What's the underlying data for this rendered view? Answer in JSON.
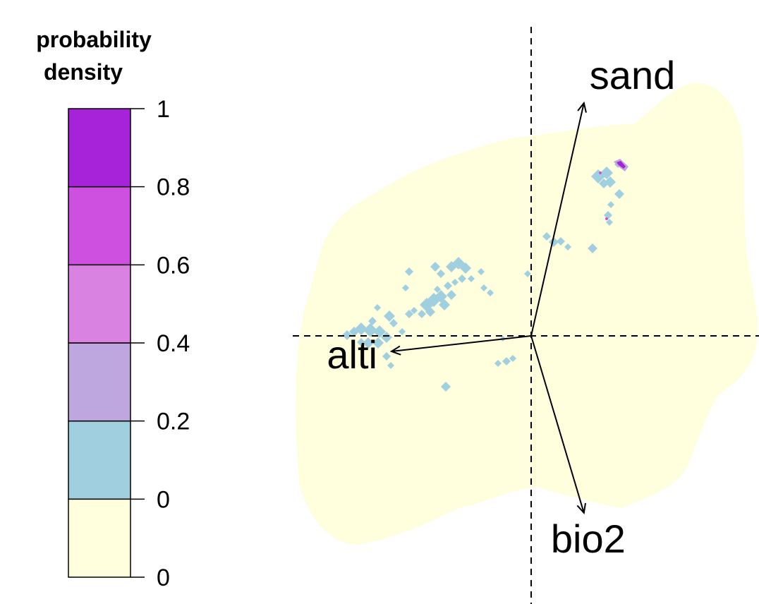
{
  "chart_data": {
    "type": "heatmap",
    "legend": {
      "title_lines": [
        "probability",
        "density"
      ],
      "bins": [
        {
          "from": 0,
          "to": 0,
          "color": "#FFFFDD"
        },
        {
          "from": 0,
          "to": 0.2,
          "color": "#A0CFDF"
        },
        {
          "from": 0.2,
          "to": 0.4,
          "color": "#BEA6DF"
        },
        {
          "from": 0.4,
          "to": 0.6,
          "color": "#DA82E2"
        },
        {
          "from": 0.6,
          "to": 0.8,
          "color": "#CE50E0"
        },
        {
          "from": 0.8,
          "to": 1,
          "color": "#A623D9"
        }
      ],
      "tick_labels": [
        "0",
        "0",
        "0.2",
        "0.4",
        "0.6",
        "0.8",
        "1"
      ]
    },
    "background_color": "#FFFFDD",
    "axes_lines": "dashed at origin",
    "arrows": [
      {
        "label": "sand",
        "x": 0.17,
        "y": 0.75
      },
      {
        "label": "alti",
        "x": -0.45,
        "y": -0.05
      },
      {
        "label": "bio2",
        "x": 0.17,
        "y": -0.57
      }
    ]
  }
}
